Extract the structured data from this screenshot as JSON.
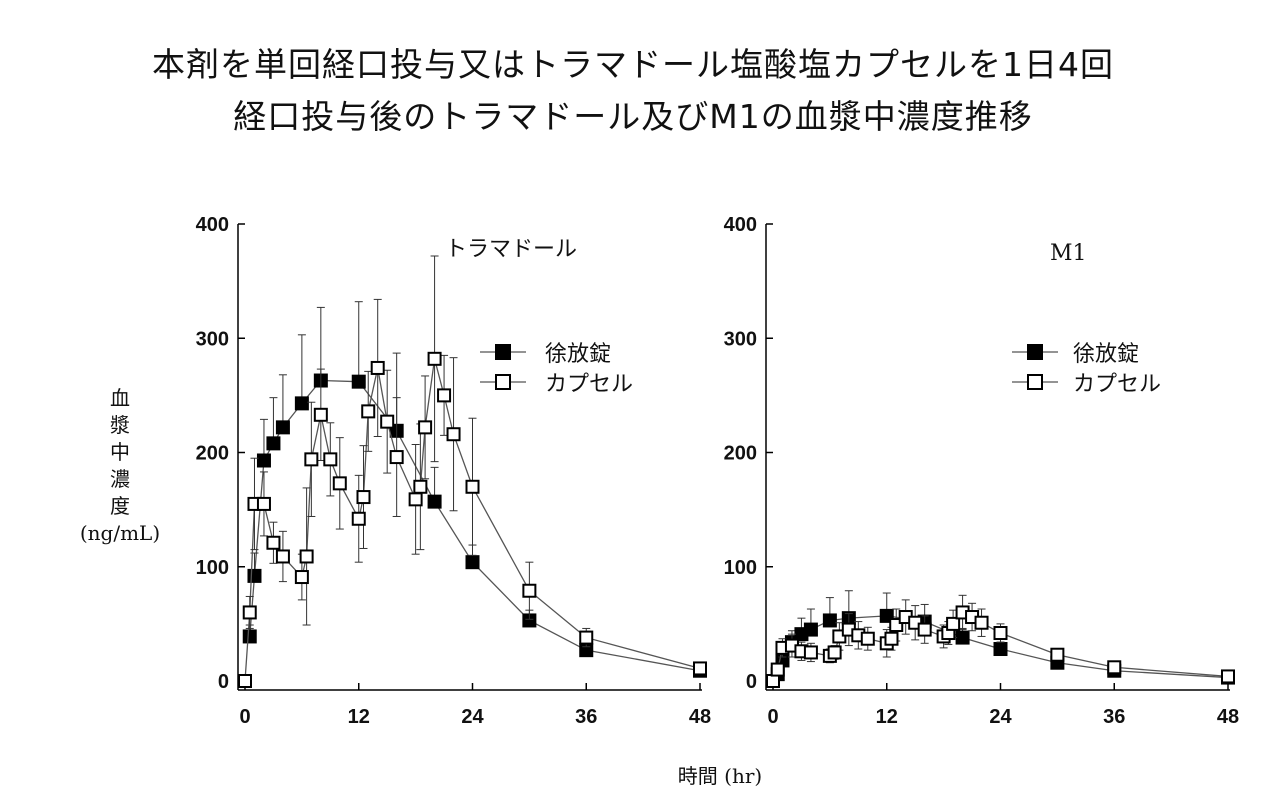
{
  "title_line1": "本剤を単回経口投与又はトラマドール塩酸塩カプセルを1日4回",
  "title_line2": "経口投与後のトラマドール及びM1の血漿中濃度推移",
  "y_label_chars": [
    "血",
    "漿",
    "中",
    "濃",
    "度"
  ],
  "y_label_unit": "(ng/mL)",
  "x_label": "時間 (hr)",
  "chart_data": [
    {
      "type": "line",
      "panel_label": "トラマドール",
      "xlim": [
        0,
        48
      ],
      "ylim": [
        0,
        400
      ],
      "xticks": [
        0,
        12,
        24,
        36,
        48
      ],
      "yticks": [
        0,
        100,
        200,
        300,
        400
      ],
      "grid": false,
      "legend": "top-right",
      "error_bars": "SD",
      "series": [
        {
          "name": "徐放錠",
          "marker": "filled-square",
          "color": "#000000",
          "x": [
            0.5,
            1,
            2,
            3,
            4,
            6,
            8,
            12,
            16,
            20,
            24,
            30,
            36,
            48
          ],
          "y": [
            39,
            92,
            193,
            208,
            222,
            243,
            263,
            262,
            219,
            157,
            104,
            53,
            27,
            9
          ],
          "sd": [
            10,
            20,
            36,
            40,
            46,
            60,
            64,
            70,
            68,
            30,
            15,
            9,
            9,
            3
          ]
        },
        {
          "name": "カプセル",
          "marker": "open-square",
          "color": "#000000",
          "x": [
            0,
            0.5,
            1,
            2,
            3,
            4,
            6,
            6.5,
            7,
            8,
            9,
            10,
            12,
            12.5,
            13,
            14,
            15,
            16,
            18,
            18.5,
            19,
            20,
            21,
            22,
            24,
            30,
            36,
            48
          ],
          "y": [
            0,
            60,
            155,
            155,
            121,
            109,
            91,
            109,
            194,
            233,
            194,
            173,
            142,
            161,
            236,
            274,
            227,
            196,
            159,
            170,
            222,
            282,
            250,
            216,
            170,
            79,
            38,
            11
          ],
          "sd": [
            1,
            14,
            40,
            28,
            18,
            22,
            20,
            60,
            50,
            40,
            32,
            40,
            38,
            45,
            35,
            60,
            45,
            52,
            48,
            55,
            45,
            90,
            35,
            67,
            60,
            25,
            8,
            3
          ]
        }
      ]
    },
    {
      "type": "line",
      "panel_label": "M1",
      "xlim": [
        0,
        48
      ],
      "ylim": [
        0,
        400
      ],
      "xticks": [
        0,
        12,
        24,
        36,
        48
      ],
      "yticks": [
        0,
        100,
        200,
        300,
        400
      ],
      "grid": false,
      "legend": "top-right",
      "error_bars": "SD",
      "series": [
        {
          "name": "徐放錠",
          "marker": "filled-square",
          "color": "#000000",
          "x": [
            0.5,
            1,
            2,
            3,
            4,
            6,
            8,
            12,
            16,
            20,
            24,
            30,
            36,
            48
          ],
          "y": [
            6,
            18,
            34,
            41,
            45,
            53,
            55,
            57,
            52,
            38,
            28,
            16,
            9,
            3
          ],
          "sd": [
            3,
            6,
            10,
            14,
            18,
            20,
            24,
            20,
            15,
            8,
            6,
            4,
            3,
            1
          ]
        },
        {
          "name": "カプセル",
          "marker": "open-square",
          "color": "#000000",
          "x": [
            0,
            0.5,
            1,
            2,
            3,
            4,
            6,
            6.5,
            7,
            8,
            9,
            10,
            12,
            12.5,
            13,
            14,
            15,
            16,
            18,
            18.5,
            19,
            20,
            21,
            22,
            24,
            30,
            36,
            48
          ],
          "y": [
            0,
            10,
            29,
            31,
            26,
            25,
            22,
            25,
            39,
            45,
            40,
            37,
            33,
            37,
            49,
            56,
            51,
            45,
            39,
            42,
            50,
            60,
            56,
            51,
            42,
            23,
            12,
            4
          ],
          "sd": [
            1,
            4,
            8,
            10,
            8,
            8,
            6,
            6,
            12,
            14,
            12,
            10,
            12,
            10,
            14,
            15,
            15,
            12,
            10,
            10,
            12,
            15,
            12,
            12,
            8,
            5,
            3,
            1
          ]
        }
      ]
    }
  ]
}
